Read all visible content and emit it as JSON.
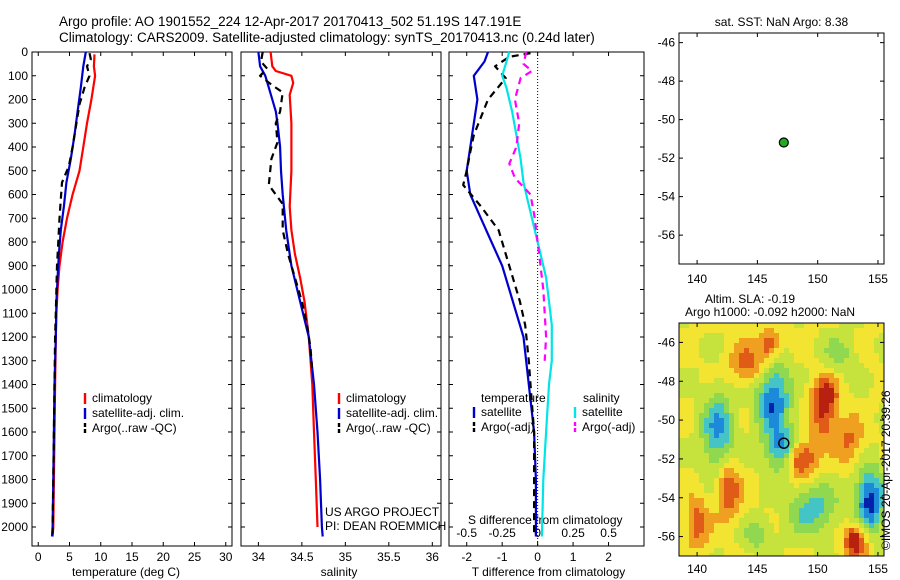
{
  "header": {
    "line1": "Argo profile: AO 1901552_224 12-Apr-2017 20170413_502 51.19S 147.191E",
    "line2": "Climatology: CARS2009. Satellite-adjusted climatology: synTS_20170413.nc (0.24d later)"
  },
  "colors": {
    "climatology": "#ff0000",
    "satellite": "#0000cc",
    "argo": "#000000",
    "salinity_satellite": "#00e5e5",
    "salinity_argo": "#ff00ff",
    "float_marker": "#22aa22"
  },
  "chart_data": [
    {
      "type": "line",
      "id": "temperature",
      "xlabel": "temperature (deg C)",
      "ylabel": "",
      "xlim": [
        -1,
        31
      ],
      "ylim": [
        2080,
        0
      ],
      "xticks": [
        0,
        5,
        10,
        15,
        20,
        25,
        30
      ],
      "yticks": [
        0,
        100,
        200,
        300,
        400,
        500,
        600,
        700,
        800,
        900,
        1000,
        1100,
        1200,
        1300,
        1400,
        1500,
        1600,
        1700,
        1800,
        1900,
        2000
      ],
      "legend": [
        "climatology",
        "satellite-adj. clim.",
        "Argo(..raw -QC)"
      ],
      "series": [
        {
          "name": "climatology",
          "style": "solid",
          "points": [
            [
              9.0,
              10
            ],
            [
              8.9,
              60
            ],
            [
              9.1,
              100
            ],
            [
              8.5,
              200
            ],
            [
              7.8,
              300
            ],
            [
              7.2,
              400
            ],
            [
              6.6,
              500
            ],
            [
              5.5,
              600
            ],
            [
              4.6,
              700
            ],
            [
              3.9,
              800
            ],
            [
              3.4,
              900
            ],
            [
              3.1,
              1000
            ],
            [
              2.9,
              1100
            ],
            [
              2.8,
              1200
            ],
            [
              2.7,
              1400
            ],
            [
              2.6,
              1600
            ],
            [
              2.5,
              1800
            ],
            [
              2.4,
              2000
            ],
            [
              2.3,
              2040
            ]
          ]
        },
        {
          "name": "satellite-adj. clim.",
          "style": "solid",
          "points": [
            [
              7.6,
              0
            ],
            [
              7.2,
              60
            ],
            [
              6.8,
              150
            ],
            [
              6.3,
              250
            ],
            [
              5.8,
              350
            ],
            [
              5.2,
              450
            ],
            [
              4.5,
              550
            ],
            [
              4.1,
              650
            ],
            [
              3.6,
              750
            ],
            [
              3.3,
              850
            ],
            [
              3.1,
              950
            ],
            [
              2.9,
              1050
            ],
            [
              2.8,
              1200
            ],
            [
              2.6,
              1400
            ],
            [
              2.5,
              1600
            ],
            [
              2.4,
              1800
            ],
            [
              2.3,
              2000
            ],
            [
              2.2,
              2040
            ]
          ]
        },
        {
          "name": "Argo(..raw -QC)",
          "style": "dashed",
          "points": [
            [
              8.2,
              5
            ],
            [
              8.4,
              30
            ],
            [
              7.8,
              60
            ],
            [
              8.2,
              100
            ],
            [
              7.4,
              150
            ],
            [
              6.6,
              220
            ],
            [
              6.1,
              300
            ],
            [
              5.5,
              400
            ],
            [
              4.9,
              480
            ],
            [
              3.8,
              550
            ],
            [
              3.6,
              620
            ],
            [
              3.4,
              700
            ],
            [
              3.2,
              800
            ],
            [
              3.0,
              900
            ],
            [
              2.9,
              1000
            ],
            [
              2.8,
              1100
            ],
            [
              2.7,
              1200
            ],
            [
              2.6,
              1400
            ],
            [
              2.5,
              1600
            ],
            [
              2.4,
              1800
            ],
            [
              2.3,
              2000
            ],
            [
              2.3,
              2030
            ]
          ]
        }
      ]
    },
    {
      "type": "line",
      "id": "salinity",
      "xlabel": "salinity",
      "ylabel": "",
      "xlim": [
        33.8,
        36.1
      ],
      "ylim": [
        2080,
        0
      ],
      "xticks": [
        34,
        34.5,
        35,
        35.5,
        36
      ],
      "xtick_labels": [
        "34",
        "34.5",
        "35",
        "35.5",
        "36"
      ],
      "legend": [
        "climatology",
        "satellite-adj. clim.",
        "Argo(..raw -QC)"
      ],
      "annotation": [
        "US ARGO PROJECT",
        "PI: DEAN ROEMMICH"
      ],
      "series": [
        {
          "name": "climatology",
          "style": "solid",
          "points": [
            [
              34.14,
              0
            ],
            [
              34.16,
              60
            ],
            [
              34.2,
              80
            ],
            [
              34.38,
              100
            ],
            [
              34.4,
              130
            ],
            [
              34.36,
              180
            ],
            [
              34.38,
              300
            ],
            [
              34.38,
              500
            ],
            [
              34.36,
              650
            ],
            [
              34.38,
              750
            ],
            [
              34.42,
              850
            ],
            [
              34.48,
              950
            ],
            [
              34.53,
              1050
            ],
            [
              34.58,
              1200
            ],
            [
              34.62,
              1400
            ],
            [
              34.64,
              1600
            ],
            [
              34.66,
              1800
            ],
            [
              34.68,
              2000
            ]
          ]
        },
        {
          "name": "satellite-adj. clim.",
          "style": "solid",
          "points": [
            [
              34.0,
              0
            ],
            [
              34.02,
              60
            ],
            [
              34.08,
              100
            ],
            [
              34.12,
              150
            ],
            [
              34.16,
              200
            ],
            [
              34.2,
              250
            ],
            [
              34.22,
              300
            ],
            [
              34.25,
              400
            ],
            [
              34.26,
              500
            ],
            [
              34.28,
              600
            ],
            [
              34.32,
              750
            ],
            [
              34.38,
              900
            ],
            [
              34.48,
              1050
            ],
            [
              34.58,
              1200
            ],
            [
              34.64,
              1400
            ],
            [
              34.68,
              1600
            ],
            [
              34.71,
              1800
            ],
            [
              34.73,
              2000
            ],
            [
              34.74,
              2040
            ]
          ]
        },
        {
          "name": "Argo(..raw -QC)",
          "style": "dashed",
          "points": [
            [
              34.05,
              0
            ],
            [
              34.03,
              40
            ],
            [
              34.1,
              70
            ],
            [
              34.02,
              100
            ],
            [
              34.16,
              140
            ],
            [
              34.28,
              170
            ],
            [
              34.25,
              250
            ],
            [
              34.2,
              300
            ],
            [
              34.22,
              380
            ],
            [
              34.15,
              450
            ],
            [
              34.12,
              560
            ],
            [
              34.28,
              640
            ],
            [
              34.28,
              750
            ],
            [
              34.34,
              850
            ],
            [
              34.42,
              950
            ],
            [
              34.5,
              1050
            ],
            [
              34.56,
              1150
            ],
            [
              34.6,
              1250
            ],
            [
              34.62,
              1350
            ]
          ]
        }
      ]
    },
    {
      "type": "line",
      "id": "difference",
      "xlabel": "T difference from climatology",
      "xlabel_top": "S difference from climatology",
      "xlim": [
        -2.5,
        3.0
      ],
      "ylim": [
        2080,
        0
      ],
      "xticks": [
        -2,
        -1,
        0,
        1,
        2
      ],
      "xtick_labels": [
        "-2",
        "-1",
        "0",
        "1",
        "2"
      ],
      "s_tick_labels": [
        "-0.5",
        "-0.25",
        "0",
        "0.25",
        "0.5"
      ],
      "legend_t_title": "temperature",
      "legend_s_title": "salinity",
      "legend": [
        "satellite",
        "Argo(-adj)",
        "satellite",
        "Argo(-adj)"
      ],
      "series": [
        {
          "name": "satellite",
          "quantity": "temperature",
          "style": "solid",
          "points": [
            [
              -1.4,
              0
            ],
            [
              -1.5,
              40
            ],
            [
              -1.8,
              100
            ],
            [
              -1.7,
              200
            ],
            [
              -1.8,
              300
            ],
            [
              -1.9,
              400
            ],
            [
              -2.0,
              500
            ],
            [
              -1.9,
              600
            ],
            [
              -1.6,
              700
            ],
            [
              -1.3,
              800
            ],
            [
              -1.0,
              900
            ],
            [
              -0.8,
              1000
            ],
            [
              -0.6,
              1100
            ],
            [
              -0.4,
              1200
            ],
            [
              -0.25,
              1400
            ],
            [
              -0.1,
              1600
            ],
            [
              -0.05,
              1800
            ],
            [
              -0.05,
              2040
            ]
          ]
        },
        {
          "name": "Argo(-adj)",
          "quantity": "temperature",
          "style": "dashed",
          "points": [
            [
              -0.2,
              5
            ],
            [
              -0.8,
              20
            ],
            [
              -1.2,
              60
            ],
            [
              -0.9,
              110
            ],
            [
              -1.4,
              200
            ],
            [
              -1.8,
              350
            ],
            [
              -1.9,
              420
            ],
            [
              -2.0,
              500
            ],
            [
              -2.1,
              560
            ],
            [
              -1.6,
              650
            ],
            [
              -1.1,
              750
            ],
            [
              -0.9,
              850
            ],
            [
              -0.7,
              950
            ],
            [
              -0.5,
              1050
            ],
            [
              -0.35,
              1150
            ],
            [
              -0.25,
              1300
            ],
            [
              -0.2,
              1400
            ],
            [
              -0.15,
              1500
            ],
            [
              -0.1,
              1600
            ],
            [
              -0.1,
              2040
            ]
          ]
        },
        {
          "name": "satellite",
          "quantity": "salinity",
          "style": "solid",
          "points": [
            [
              -0.2,
              0
            ],
            [
              -0.25,
              100
            ],
            [
              -0.22,
              150
            ],
            [
              -0.18,
              250
            ],
            [
              -0.15,
              350
            ],
            [
              -0.12,
              450
            ],
            [
              -0.1,
              550
            ],
            [
              -0.06,
              650
            ],
            [
              -0.02,
              750
            ],
            [
              0.02,
              850
            ],
            [
              0.06,
              950
            ],
            [
              0.08,
              1050
            ],
            [
              0.1,
              1150
            ],
            [
              0.1,
              1300
            ],
            [
              0.08,
              1400
            ],
            [
              0.06,
              1600
            ],
            [
              0.04,
              1800
            ],
            [
              0.03,
              2040
            ]
          ]
        },
        {
          "name": "Argo(-adj)",
          "quantity": "salinity",
          "style": "dashed",
          "points": [
            [
              -0.08,
              0
            ],
            [
              -0.1,
              50
            ],
            [
              -0.04,
              80
            ],
            [
              -0.12,
              110
            ],
            [
              -0.16,
              200
            ],
            [
              -0.13,
              300
            ],
            [
              -0.15,
              400
            ],
            [
              -0.2,
              470
            ],
            [
              -0.16,
              530
            ],
            [
              -0.05,
              600
            ],
            [
              -0.02,
              700
            ],
            [
              0.0,
              800
            ],
            [
              0.02,
              900
            ],
            [
              0.04,
              1000
            ],
            [
              0.05,
              1100
            ],
            [
              0.06,
              1200
            ],
            [
              0.05,
              1300
            ]
          ]
        }
      ]
    },
    {
      "type": "scatter",
      "id": "position",
      "title": "sat. SST: NaN Argo: 8.38",
      "xlim": [
        138.5,
        155.5
      ],
      "ylim": [
        -57.5,
        -45.5
      ],
      "xticks": [
        140,
        145,
        150,
        155
      ],
      "yticks": [
        -46,
        -48,
        -50,
        -52,
        -54,
        -56
      ],
      "x": [
        147.191
      ],
      "y": [
        -51.19
      ]
    },
    {
      "type": "heatmap",
      "id": "sla_map",
      "title_line1": "Altim. SLA: -0.19",
      "title_line2": "Argo h1000: -0.092 h2000: NaN",
      "xlim": [
        138.5,
        155.5
      ],
      "ylim": [
        -57.0,
        -45.0
      ],
      "xticks": [
        140,
        145,
        150,
        155
      ],
      "yticks": [
        -46,
        -48,
        -50,
        -52,
        -54,
        -56
      ],
      "colorscale": [
        "#0022aa",
        "#1c8ad8",
        "#44c4c4",
        "#90d850",
        "#c6e23c",
        "#f2e430",
        "#f0a020",
        "#e05a18",
        "#b82010"
      ],
      "field_range": [
        -0.6,
        0.6
      ],
      "marker": [
        147.191,
        -51.19
      ],
      "blobs": [
        [
          146.3,
          -48.9,
          1.4,
          1.9,
          -0.55
        ],
        [
          147.1,
          -51.6,
          1.3,
          1.1,
          -0.5
        ],
        [
          141.7,
          -50.6,
          1.3,
          2.0,
          -0.45
        ],
        [
          148.5,
          -52.0,
          1.3,
          0.9,
          0.55
        ],
        [
          150.6,
          -48.8,
          1.1,
          1.0,
          0.5
        ],
        [
          154.3,
          -54.2,
          1.2,
          1.8,
          -0.6
        ],
        [
          149.6,
          -54.6,
          2.0,
          1.3,
          -0.35
        ],
        [
          142.6,
          -53.6,
          1.0,
          1.5,
          0.4
        ],
        [
          152.6,
          -51.1,
          1.2,
          1.2,
          0.3
        ],
        [
          144.3,
          -47.1,
          1.5,
          1.0,
          0.35
        ],
        [
          146.0,
          -46.1,
          0.9,
          0.8,
          0.4
        ],
        [
          153.2,
          -56.2,
          1.0,
          0.9,
          0.6
        ],
        [
          140.0,
          -55.3,
          1.0,
          1.3,
          0.35
        ],
        [
          151.8,
          -46.6,
          1.3,
          1.0,
          -0.2
        ],
        [
          145.0,
          -55.9,
          1.2,
          0.8,
          -0.25
        ],
        [
          150.5,
          -50.2,
          1.0,
          1.0,
          0.3
        ]
      ]
    }
  ],
  "footer": {
    "credit": "©IMOS 20-Apr-2017 20:39:26"
  }
}
